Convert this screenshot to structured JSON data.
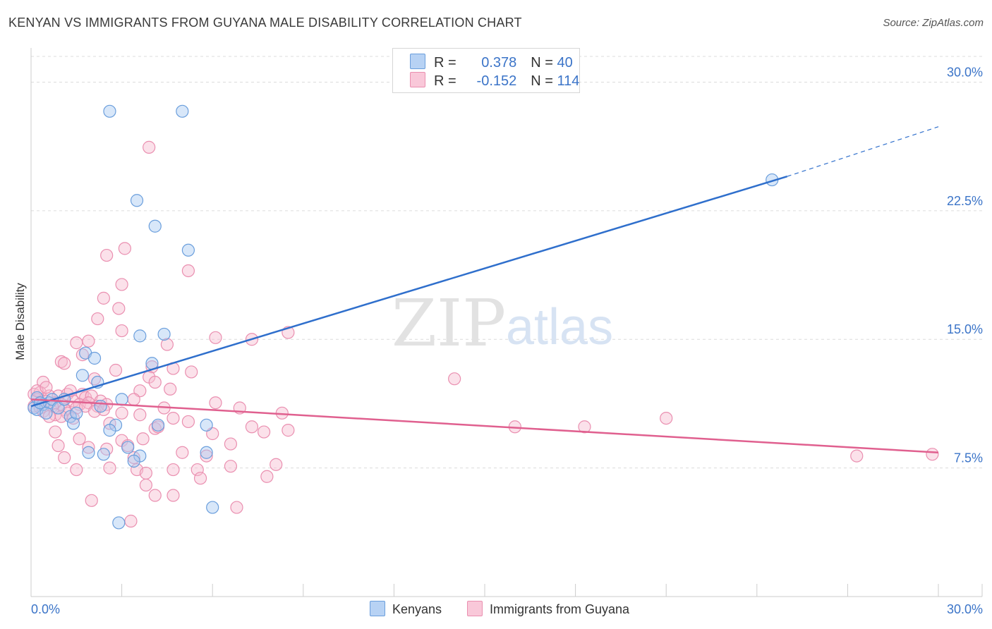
{
  "header": {
    "title": "KENYAN VS IMMIGRANTS FROM GUYANA MALE DISABILITY CORRELATION CHART",
    "source": "Source: ZipAtlas.com"
  },
  "watermark": {
    "zip": "ZIP",
    "atlas": "atlas"
  },
  "legend": {
    "r_label": "R =",
    "n_label": "N =",
    "rows": [
      {
        "r": "0.378",
        "n": "40"
      },
      {
        "r": "-0.152",
        "n": "114"
      }
    ]
  },
  "colors": {
    "kenyans_fill": "#a9c9f2",
    "kenyans_stroke": "#6a9edc",
    "kenyans_line": "#2f6fcc",
    "guyana_fill": "#f6bcd0",
    "guyana_stroke": "#ea8fb0",
    "guyana_line": "#e0608f",
    "axis_label": "#3b74c8",
    "grid": "#dcdcdc"
  },
  "chart_data": {
    "type": "scatter",
    "title": "KENYAN VS IMMIGRANTS FROM GUYANA MALE DISABILITY CORRELATION CHART",
    "xlabel": "",
    "ylabel": "Male Disability",
    "xlim": [
      0,
      30
    ],
    "ylim": [
      0,
      31.5
    ],
    "x_tick_labels": [
      "0.0%",
      "30.0%"
    ],
    "y_ticks": [
      7.5,
      15.0,
      22.5,
      30.0
    ],
    "y_tick_labels": [
      "7.5%",
      "15.0%",
      "22.5%",
      "30.0%"
    ],
    "grid": true,
    "legend_position": "top-center",
    "series": [
      {
        "name": "Kenyans",
        "r": 0.378,
        "n": 40,
        "trend": {
          "x0": 0.0,
          "y0": 11.1,
          "x1": 25.0,
          "y1": 24.5,
          "dashed_to_x": 30.0,
          "dashed_to_y": 27.4
        },
        "points": [
          [
            2.6,
            28.3
          ],
          [
            5.0,
            28.3
          ],
          [
            3.5,
            23.1
          ],
          [
            4.1,
            21.6
          ],
          [
            5.2,
            20.2
          ],
          [
            24.5,
            24.3
          ],
          [
            3.6,
            15.2
          ],
          [
            4.4,
            15.3
          ],
          [
            1.8,
            14.2
          ],
          [
            2.1,
            13.9
          ],
          [
            4.0,
            13.6
          ],
          [
            1.7,
            12.9
          ],
          [
            2.2,
            12.5
          ],
          [
            3.0,
            11.5
          ],
          [
            0.2,
            11.6
          ],
          [
            0.4,
            11.2
          ],
          [
            0.6,
            11.3
          ],
          [
            0.7,
            11.5
          ],
          [
            0.9,
            11.0
          ],
          [
            1.1,
            11.5
          ],
          [
            0.1,
            11.0
          ],
          [
            0.2,
            10.9
          ],
          [
            0.5,
            10.7
          ],
          [
            1.3,
            10.5
          ],
          [
            1.4,
            10.1
          ],
          [
            2.3,
            11.1
          ],
          [
            1.5,
            10.7
          ],
          [
            0.3,
            11.3
          ],
          [
            2.8,
            10.0
          ],
          [
            2.6,
            9.7
          ],
          [
            4.2,
            10.0
          ],
          [
            5.8,
            10.0
          ],
          [
            3.2,
            8.7
          ],
          [
            3.6,
            8.2
          ],
          [
            5.8,
            8.4
          ],
          [
            1.9,
            8.4
          ],
          [
            2.4,
            8.3
          ],
          [
            3.4,
            7.9
          ],
          [
            6.0,
            5.2
          ],
          [
            2.9,
            4.3
          ]
        ]
      },
      {
        "name": "Immigrants from Guyana",
        "r": -0.152,
        "n": 114,
        "trend": {
          "x0": 0.0,
          "y0": 11.5,
          "x1": 30.0,
          "y1": 8.4
        },
        "points": [
          [
            3.9,
            26.2
          ],
          [
            3.1,
            20.3
          ],
          [
            2.5,
            19.9
          ],
          [
            5.2,
            19.0
          ],
          [
            3.0,
            18.2
          ],
          [
            2.4,
            17.4
          ],
          [
            2.9,
            16.8
          ],
          [
            2.2,
            16.2
          ],
          [
            3.0,
            15.5
          ],
          [
            8.5,
            15.4
          ],
          [
            6.1,
            15.1
          ],
          [
            7.3,
            15.0
          ],
          [
            1.9,
            14.9
          ],
          [
            1.5,
            14.8
          ],
          [
            4.5,
            14.7
          ],
          [
            1.7,
            14.1
          ],
          [
            1.0,
            13.7
          ],
          [
            1.1,
            13.6
          ],
          [
            4.0,
            13.4
          ],
          [
            4.7,
            13.3
          ],
          [
            2.8,
            13.2
          ],
          [
            5.3,
            13.1
          ],
          [
            3.9,
            12.8
          ],
          [
            2.1,
            12.7
          ],
          [
            4.1,
            12.5
          ],
          [
            0.4,
            12.5
          ],
          [
            14.0,
            12.7
          ],
          [
            4.6,
            12.1
          ],
          [
            3.6,
            12.0
          ],
          [
            0.1,
            11.8
          ],
          [
            0.3,
            11.9
          ],
          [
            0.6,
            11.7
          ],
          [
            0.9,
            11.7
          ],
          [
            1.2,
            11.8
          ],
          [
            1.7,
            11.8
          ],
          [
            1.8,
            11.6
          ],
          [
            2.0,
            11.7
          ],
          [
            2.3,
            11.4
          ],
          [
            0.2,
            11.5
          ],
          [
            0.5,
            11.4
          ],
          [
            0.8,
            11.3
          ],
          [
            1.0,
            11.2
          ],
          [
            1.4,
            11.4
          ],
          [
            1.6,
            11.2
          ],
          [
            1.9,
            11.3
          ],
          [
            2.2,
            11.1
          ],
          [
            2.5,
            11.2
          ],
          [
            3.4,
            11.5
          ],
          [
            6.1,
            11.3
          ],
          [
            0.1,
            11.1
          ],
          [
            0.3,
            11.0
          ],
          [
            0.7,
            11.1
          ],
          [
            1.1,
            10.9
          ],
          [
            1.5,
            11.0
          ],
          [
            1.8,
            11.1
          ],
          [
            2.1,
            10.8
          ],
          [
            2.4,
            10.9
          ],
          [
            0.4,
            10.8
          ],
          [
            0.8,
            10.6
          ],
          [
            1.2,
            10.7
          ],
          [
            3.0,
            10.7
          ],
          [
            4.4,
            11.0
          ],
          [
            8.3,
            10.7
          ],
          [
            0.6,
            10.5
          ],
          [
            1.0,
            10.5
          ],
          [
            1.4,
            10.4
          ],
          [
            4.7,
            10.4
          ],
          [
            21.0,
            10.4
          ],
          [
            16.0,
            9.9
          ],
          [
            18.3,
            9.9
          ],
          [
            7.3,
            9.9
          ],
          [
            4.1,
            9.8
          ],
          [
            8.5,
            9.7
          ],
          [
            0.8,
            9.6
          ],
          [
            6.0,
            9.5
          ],
          [
            7.7,
            9.6
          ],
          [
            3.7,
            9.2
          ],
          [
            3.0,
            9.1
          ],
          [
            6.6,
            8.9
          ],
          [
            0.9,
            8.8
          ],
          [
            1.9,
            8.7
          ],
          [
            2.5,
            8.6
          ],
          [
            3.2,
            8.8
          ],
          [
            5.0,
            8.4
          ],
          [
            5.8,
            8.2
          ],
          [
            29.8,
            8.3
          ],
          [
            27.3,
            8.2
          ],
          [
            1.1,
            8.1
          ],
          [
            3.4,
            8.1
          ],
          [
            8.1,
            7.7
          ],
          [
            6.6,
            7.6
          ],
          [
            1.5,
            7.4
          ],
          [
            2.6,
            7.5
          ],
          [
            3.5,
            7.4
          ],
          [
            4.7,
            7.4
          ],
          [
            5.5,
            7.4
          ],
          [
            3.8,
            7.2
          ],
          [
            7.8,
            7.0
          ],
          [
            5.6,
            6.9
          ],
          [
            3.8,
            6.5
          ],
          [
            4.1,
            5.9
          ],
          [
            4.7,
            5.9
          ],
          [
            2.0,
            5.6
          ],
          [
            6.8,
            5.2
          ],
          [
            3.3,
            4.4
          ],
          [
            0.2,
            12.0
          ],
          [
            0.5,
            12.2
          ],
          [
            1.3,
            12.0
          ],
          [
            2.6,
            10.1
          ],
          [
            3.6,
            10.6
          ],
          [
            1.6,
            9.2
          ],
          [
            4.2,
            9.9
          ],
          [
            5.2,
            10.2
          ],
          [
            6.9,
            11.0
          ]
        ]
      }
    ]
  },
  "axes": {
    "x_left_label": "0.0%",
    "x_right_label": "30.0%",
    "y_axis_title": "Male Disability"
  },
  "bottom_legend": {
    "kenyans": "Kenyans",
    "guyana": "Immigrants from Guyana"
  }
}
